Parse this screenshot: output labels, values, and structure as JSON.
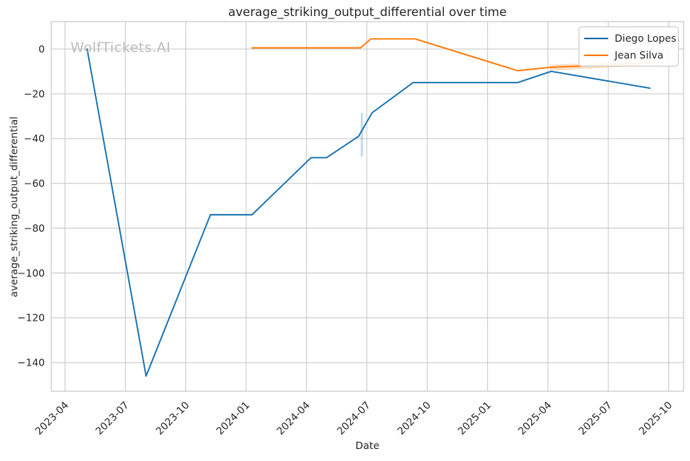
{
  "figure": {
    "watermark": "WolfTickets.AI"
  },
  "chart_data": {
    "type": "line",
    "title": "average_striking_output_differential over time",
    "xlabel": "Date",
    "ylabel": "average_striking_output_differential",
    "grid": true,
    "x_axis": {
      "ticks": [
        "2023-04",
        "2023-07",
        "2023-10",
        "2024-01",
        "2024-04",
        "2024-07",
        "2024-10",
        "2025-01",
        "2025-04",
        "2025-07",
        "2025-10"
      ],
      "range_months_from_2023_04": [
        -0.68,
        30.74
      ],
      "tick_rotation_deg": 45
    },
    "y_axis": {
      "ticks": [
        0,
        -20,
        -40,
        -60,
        -80,
        -100,
        -120,
        -140
      ],
      "range": [
        -152.8,
        12.2
      ]
    },
    "legend": {
      "position": "upper right",
      "entries": [
        {
          "label": "Diego Lopes",
          "color": "#1f77b4"
        },
        {
          "label": "Jean Silva",
          "color": "#ff7f0e"
        }
      ]
    },
    "series": [
      {
        "name": "Diego Lopes",
        "color": "#1f77b4",
        "points": [
          [
            "2023-05-04",
            0
          ],
          [
            "2023-08-02",
            -146
          ],
          [
            "2023-11-08",
            -74
          ],
          [
            "2024-01-10",
            -74
          ],
          [
            "2024-04-08",
            -48.5
          ],
          [
            "2024-05-01",
            -48.5
          ],
          [
            "2024-06-19",
            -39
          ],
          [
            "2024-07-09",
            -28.5
          ],
          [
            "2024-09-10",
            -15
          ],
          [
            "2025-02-16",
            -15
          ],
          [
            "2025-04-06",
            -10
          ],
          [
            "2025-09-03",
            -17.5
          ]
        ]
      },
      {
        "name": "Jean Silva",
        "color": "#ff7f0e",
        "points": [
          [
            "2024-01-10",
            0.5
          ],
          [
            "2024-06-22",
            0.5
          ],
          [
            "2024-07-07",
            4.5
          ],
          [
            "2024-09-13",
            4.5
          ],
          [
            "2025-02-16",
            -9.7
          ],
          [
            "2025-04-04",
            -8.2
          ],
          [
            "2025-09-03",
            -6.3
          ]
        ]
      }
    ],
    "bands": [
      {
        "series": "Diego Lopes",
        "type": "vertical",
        "x": "2024-06-24",
        "y_from": -28.5,
        "y_to": -48,
        "color": "#1f77b4",
        "opacity": 0.25
      },
      {
        "series": "Jean Silva",
        "type": "area",
        "x": [
          "2025-04-04",
          "2025-09-03"
        ],
        "upper": [
          -7.0,
          -5.4
        ],
        "lower": [
          -9.6,
          -7.4
        ],
        "color": "#ff7f0e",
        "opacity": 0.25
      }
    ]
  }
}
